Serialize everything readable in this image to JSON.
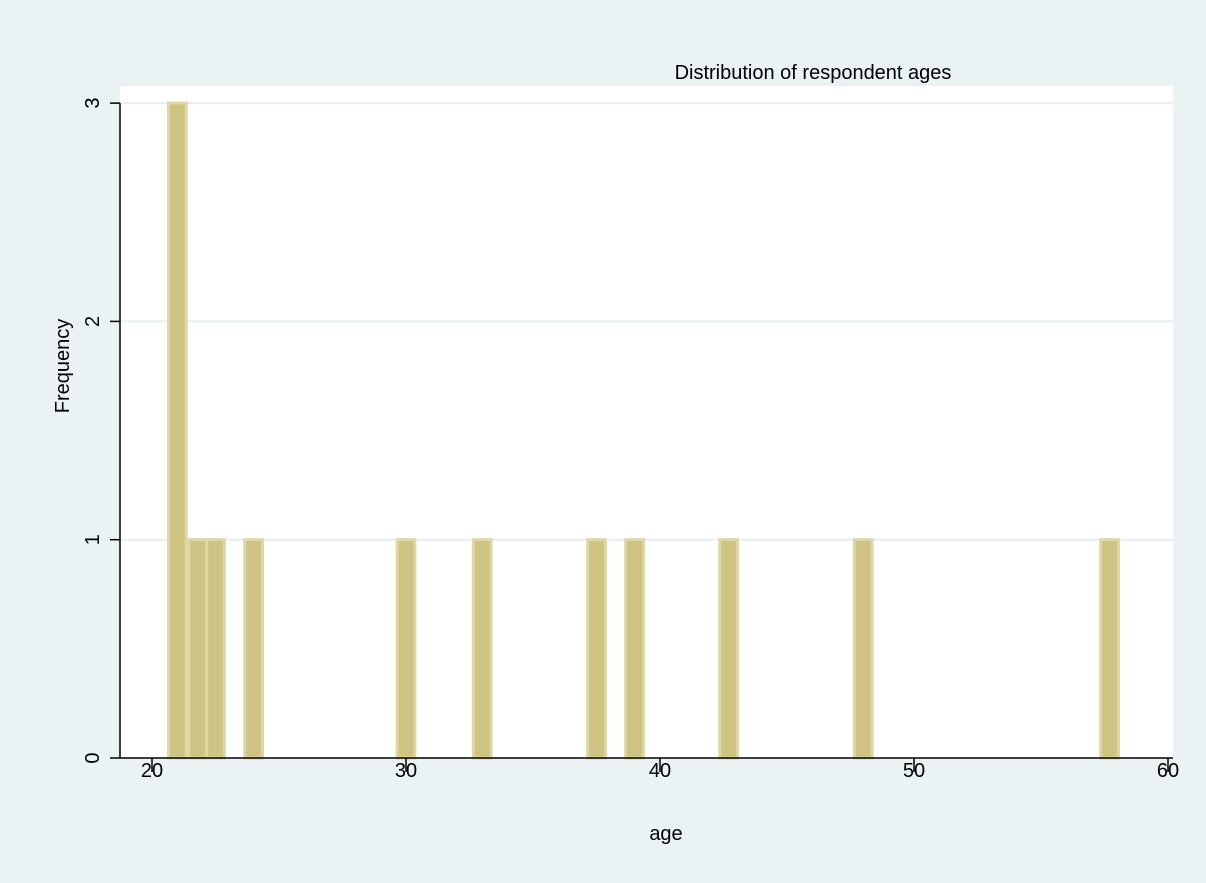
{
  "chart_data": {
    "type": "bar",
    "title": "Distribution of respondent ages",
    "xlabel": "age",
    "ylabel": "Frequency",
    "xlim": [
      19,
      60
    ],
    "ylim": [
      0,
      3
    ],
    "x_ticks": [
      20,
      30,
      40,
      50,
      60
    ],
    "y_ticks": [
      0,
      1,
      2,
      3
    ],
    "grid": "horizontal",
    "bin_width": 0.7,
    "bars": [
      {
        "x": 21.0,
        "value": 3
      },
      {
        "x": 21.8,
        "value": 1
      },
      {
        "x": 22.5,
        "value": 1
      },
      {
        "x": 24.0,
        "value": 1
      },
      {
        "x": 30.0,
        "value": 1
      },
      {
        "x": 33.0,
        "value": 1
      },
      {
        "x": 37.5,
        "value": 1
      },
      {
        "x": 39.0,
        "value": 1
      },
      {
        "x": 42.7,
        "value": 1
      },
      {
        "x": 48.0,
        "value": 1
      },
      {
        "x": 57.7,
        "value": 1
      }
    ],
    "colors": {
      "background": "#eaf2f3",
      "plot_background": "#ffffff",
      "grid": "#e6eff1",
      "bar_fill": "#cfc383",
      "bar_edge": "#ded6a6",
      "axis": "#000000"
    }
  }
}
